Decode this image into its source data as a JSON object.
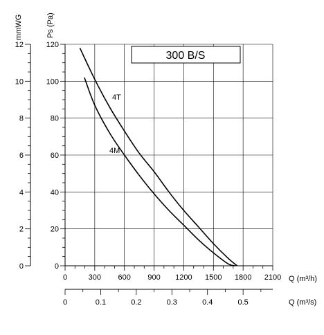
{
  "chart_data": {
    "type": "line",
    "title": "300 B/S",
    "xlabel": "Q (m³/h)",
    "xlabel2": "Q (m³/s)",
    "ylabel": "Ps (Pa)",
    "ylabel2": "mmWG",
    "xlim": [
      0,
      2100
    ],
    "ylim": [
      0,
      120
    ],
    "x_ticks": [
      "0",
      "300",
      "600",
      "900",
      "1200",
      "1500",
      "1800",
      "2100"
    ],
    "y_ticks": [
      "0",
      "20",
      "40",
      "60",
      "80",
      "100",
      "120"
    ],
    "x2_ticks": [
      "0",
      "0.1",
      "0.2",
      "0.3",
      "0.4",
      "0.5"
    ],
    "y2_ticks": [
      "0",
      "2",
      "4",
      "6",
      "8",
      "10",
      "12"
    ],
    "grid": true,
    "series": [
      {
        "name": "4T",
        "x": [
          150,
          300,
          450,
          600,
          750,
          900,
          1050,
          1200,
          1350,
          1500,
          1650,
          1740
        ],
        "y": [
          118,
          101,
          86,
          73,
          61,
          51,
          40,
          30,
          21,
          12,
          4,
          0
        ]
      },
      {
        "name": "4M",
        "x": [
          195,
          300,
          450,
          600,
          750,
          900,
          1050,
          1200,
          1350,
          1500,
          1650,
          1720
        ],
        "y": [
          102,
          87,
          72,
          60,
          49,
          39,
          30,
          22,
          14,
          7,
          1,
          0
        ]
      }
    ]
  }
}
